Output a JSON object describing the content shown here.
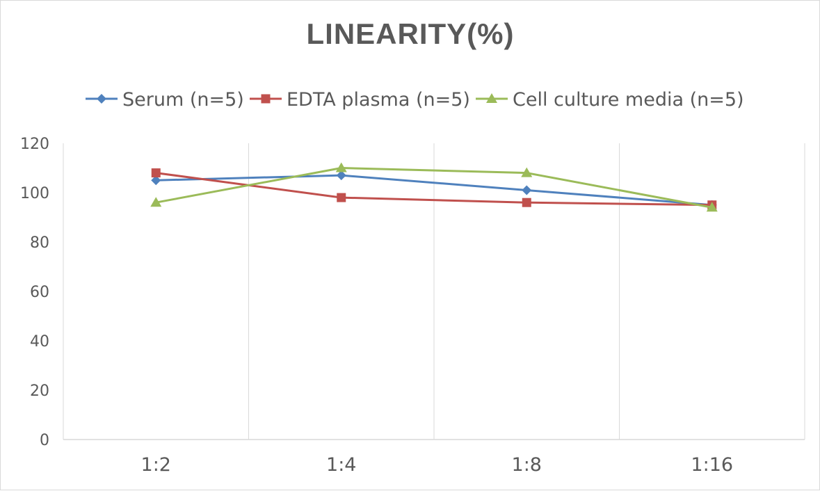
{
  "chart_data": {
    "type": "line",
    "title": "LINEARITY(%)",
    "xlabel": "",
    "ylabel": "",
    "categories": [
      "1:2",
      "1:4",
      "1:8",
      "1:16"
    ],
    "ylim": [
      0,
      120
    ],
    "yticks": [
      0,
      20,
      40,
      60,
      80,
      100,
      120
    ],
    "grid": "vertical",
    "legend_position": "top",
    "series": [
      {
        "name": "Serum (n=5)",
        "values": [
          105,
          107,
          101,
          95
        ],
        "color": "#4f81bd",
        "marker": "diamond"
      },
      {
        "name": "EDTA plasma (n=5)",
        "values": [
          108,
          98,
          96,
          95
        ],
        "color": "#c0504d",
        "marker": "square"
      },
      {
        "name": "Cell culture media (n=5)",
        "values": [
          96,
          110,
          108,
          94
        ],
        "color": "#9bbb59",
        "marker": "triangle"
      }
    ]
  }
}
